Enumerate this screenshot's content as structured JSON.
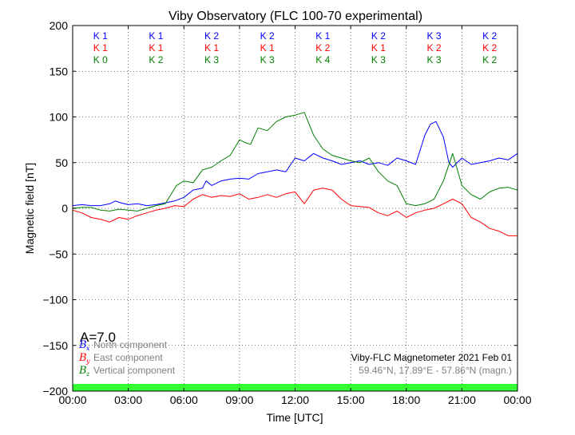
{
  "chart_data": {
    "type": "line",
    "title": "Viby Observatory (FLC 100-70 experimental)",
    "xlabel": "Time [UTC]",
    "ylabel": "Magnetic field [nT]",
    "xlim": [
      0,
      24
    ],
    "ylim": [
      -200,
      200
    ],
    "xticks": [
      0,
      3,
      6,
      9,
      12,
      15,
      18,
      21,
      24
    ],
    "xtick_labels": [
      "00:00",
      "03:00",
      "06:00",
      "09:00",
      "12:00",
      "15:00",
      "18:00",
      "21:00",
      "00:00"
    ],
    "yticks": [
      -200,
      -150,
      -100,
      -50,
      0,
      50,
      100,
      150,
      200
    ],
    "ytick_labels": [
      "−200",
      "−150",
      "−100",
      "−50",
      "0",
      "50",
      "100",
      "150",
      "200"
    ],
    "grid": true,
    "k_index_rows": [
      {
        "color": "#0000ff",
        "values": [
          "K 1",
          "K 1",
          "K 2",
          "K 2",
          "K 1",
          "K 2",
          "K 3",
          "K 2"
        ]
      },
      {
        "color": "#ff0000",
        "values": [
          "K 1",
          "K 1",
          "K 1",
          "K 1",
          "K 2",
          "K 1",
          "K 2",
          "K 2"
        ]
      },
      {
        "color": "#008000",
        "values": [
          "K 0",
          "K 2",
          "K 3",
          "K 3",
          "K 4",
          "K 3",
          "K 3",
          "K 2"
        ]
      }
    ],
    "a_index": "A=7.0",
    "legend": [
      {
        "symbol": "B",
        "sub": "x",
        "label": "North component",
        "color": "#0000ff"
      },
      {
        "symbol": "B",
        "sub": "y",
        "label": "East component",
        "color": "#ff0000"
      },
      {
        "symbol": "B",
        "sub": "z",
        "label": "Vertical component",
        "color": "#008000"
      }
    ],
    "info_line1": "Viby-FLC Magnetometer 2021 Feb 01",
    "info_line2": "59.46°N, 17.89°E - 57.86°N (magn.)",
    "bottom_band_color": "#33ff33",
    "series": [
      {
        "name": "North component",
        "color": "#0000ff",
        "x": [
          0,
          0.5,
          1,
          1.5,
          2,
          2.3,
          2.6,
          3,
          3.5,
          4,
          4.5,
          5,
          5.5,
          6,
          6.5,
          7,
          7.2,
          7.5,
          8,
          8.5,
          9,
          9.5,
          10,
          10.5,
          11,
          11.5,
          12,
          12.5,
          13,
          13.5,
          14,
          14.5,
          15,
          15.5,
          16,
          16.5,
          17,
          17.5,
          18,
          18.5,
          19,
          19.3,
          19.6,
          20,
          20.3,
          20.5,
          21,
          21.5,
          22,
          22.5,
          23,
          23.5,
          24
        ],
        "y": [
          3,
          4,
          3,
          3,
          5,
          8,
          6,
          4,
          5,
          3,
          4,
          6,
          8,
          12,
          20,
          22,
          30,
          25,
          30,
          32,
          33,
          32,
          38,
          40,
          42,
          40,
          55,
          52,
          60,
          55,
          52,
          48,
          50,
          52,
          48,
          50,
          47,
          55,
          52,
          48,
          80,
          92,
          95,
          78,
          50,
          45,
          55,
          48,
          50,
          52,
          55,
          53,
          60
        ]
      },
      {
        "name": "East component",
        "color": "#ff0000",
        "x": [
          0,
          0.5,
          1,
          1.5,
          2,
          2.5,
          3,
          3.5,
          4,
          4.5,
          5,
          5.5,
          6,
          6.5,
          7,
          7.5,
          8,
          8.5,
          9,
          9.5,
          10,
          10.5,
          11,
          11.5,
          12,
          12.5,
          13,
          13.5,
          14,
          14.5,
          15,
          15.5,
          16,
          16.5,
          17,
          17.5,
          18,
          18.5,
          19,
          19.5,
          20,
          20.5,
          21,
          21.5,
          22,
          22.5,
          23,
          23.5,
          24
        ],
        "y": [
          -2,
          -5,
          -10,
          -12,
          -15,
          -10,
          -12,
          -8,
          -5,
          -2,
          0,
          3,
          2,
          10,
          15,
          12,
          14,
          13,
          16,
          10,
          12,
          15,
          12,
          16,
          18,
          5,
          20,
          22,
          20,
          10,
          3,
          2,
          1,
          -5,
          -8,
          -3,
          -10,
          -5,
          -2,
          0,
          5,
          10,
          5,
          -10,
          -15,
          -22,
          -25,
          -30,
          -30
        ]
      },
      {
        "name": "Vertical component",
        "color": "#008000",
        "x": [
          0,
          0.5,
          1,
          1.5,
          2,
          2.5,
          3,
          3.5,
          4,
          4.5,
          5,
          5.3,
          5.6,
          6,
          6.5,
          7,
          7.5,
          8,
          8.5,
          9,
          9.3,
          9.6,
          10,
          10.5,
          11,
          11.5,
          12,
          12.5,
          13,
          13.5,
          14,
          14.5,
          15,
          15.5,
          16,
          16.5,
          17,
          17.5,
          18,
          18.5,
          19,
          19.5,
          20,
          20.5,
          21,
          21.5,
          22,
          22.5,
          23,
          23.5,
          24
        ],
        "y": [
          0,
          1,
          1,
          -2,
          -3,
          -1,
          -2,
          -3,
          0,
          3,
          5,
          15,
          25,
          30,
          28,
          42,
          45,
          52,
          58,
          75,
          72,
          70,
          88,
          85,
          95,
          100,
          102,
          105,
          80,
          65,
          58,
          55,
          52,
          50,
          55,
          40,
          30,
          25,
          5,
          3,
          5,
          10,
          30,
          60,
          25,
          15,
          10,
          18,
          22,
          23,
          20
        ]
      }
    ]
  }
}
